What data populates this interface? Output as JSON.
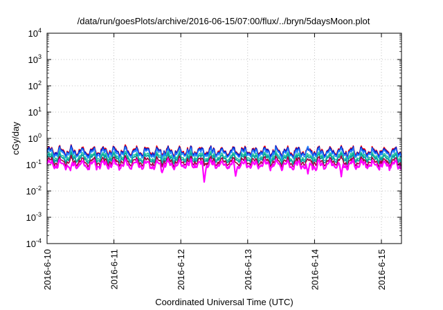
{
  "chart_data": {
    "type": "line",
    "title": "/data/run/goesPlots/archive/2016-06-15/07:00/flux/../bryn/5daysMoon.plot",
    "xlabel": "Coordinated Universal Time (UTC)",
    "ylabel": "cGy/day",
    "yscale": "log",
    "ylim": [
      0.0001,
      10000
    ],
    "xlim": [
      0,
      5.3
    ],
    "y_tick_labels": [
      {
        "base": "10",
        "exp": "-4",
        "value": 0.0001
      },
      {
        "base": "10",
        "exp": "-3",
        "value": 0.001
      },
      {
        "base": "10",
        "exp": "-2",
        "value": 0.01
      },
      {
        "base": "10",
        "exp": "-1",
        "value": 0.1
      },
      {
        "base": "10",
        "exp": "0",
        "value": 1
      },
      {
        "base": "10",
        "exp": "1",
        "value": 10
      },
      {
        "base": "10",
        "exp": "2",
        "value": 100
      },
      {
        "base": "10",
        "exp": "3",
        "value": 1000
      },
      {
        "base": "10",
        "exp": "4",
        "value": 10000
      }
    ],
    "x_tick_labels": [
      {
        "label": "2016-6-10",
        "value": 0
      },
      {
        "label": "2016-6-11",
        "value": 1
      },
      {
        "label": "2016-6-12",
        "value": 2
      },
      {
        "label": "2016-6-13",
        "value": 3
      },
      {
        "label": "2016-6-14",
        "value": 4
      },
      {
        "label": "2016-6-15",
        "value": 5
      }
    ],
    "grid": true,
    "series": [
      {
        "color": "#ff00ff",
        "base": 0.1,
        "dips": [
          [
            0.35,
            0.06
          ],
          [
            1.72,
            0.05
          ],
          [
            2.35,
            0.022
          ],
          [
            2.82,
            0.037
          ],
          [
            3.9,
            0.045
          ],
          [
            4.4,
            0.035
          ],
          [
            4.02,
            0.06
          ]
        ]
      },
      {
        "color": "#a00040",
        "base": 0.13,
        "dips": []
      },
      {
        "color": "#00a0a0",
        "base": 0.17,
        "dips": []
      },
      {
        "color": "#30c8a0",
        "base": 0.2,
        "dips": []
      },
      {
        "color": "#2080ff",
        "base": 0.27,
        "dips": [
          [
            3.9,
            0.5
          ]
        ]
      },
      {
        "color": "#0020d0",
        "base": 0.31,
        "dips": []
      },
      {
        "color": "#ff0000",
        "base": 0.33,
        "dips": []
      }
    ]
  }
}
